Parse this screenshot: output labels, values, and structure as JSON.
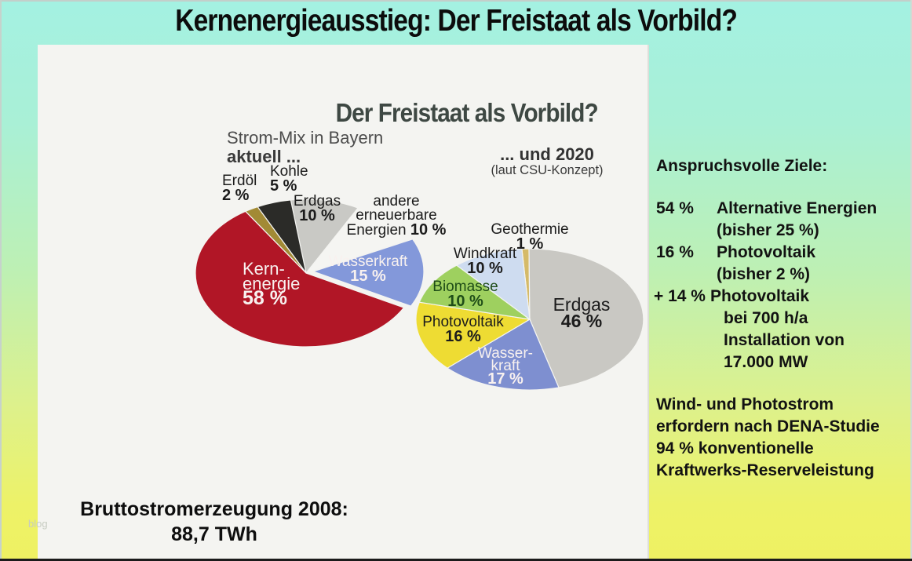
{
  "slide": {
    "title": "Kernenergieausstieg: Der Freistaat als Vorbild?",
    "watermark": "blog"
  },
  "chart": {
    "title": "Der Freistaat als Vorbild?",
    "left_caption": {
      "line1": "Strom-Mix in Bayern",
      "line2": "aktuell ..."
    },
    "right_caption": {
      "line1": "... und 2020",
      "line2": "(laut CSU-Konzept)"
    }
  },
  "chart_data": [
    {
      "type": "pie",
      "title": "Strom-Mix in Bayern aktuell ...",
      "unit": "percent",
      "slices": [
        {
          "id": "erdgas",
          "label": "Erdgas",
          "pct": "10 %",
          "value": 10,
          "color": "#c9c9c5"
        },
        {
          "id": "andere-erneuerbare",
          "label_lines": [
            "andere",
            "erneuerbare",
            "Energien"
          ],
          "pct": "10 %",
          "value": 10,
          "color": "#f5f5f2"
        },
        {
          "id": "wasserkraft",
          "label": "Wasserkraft",
          "pct": "15 %",
          "value": 15,
          "color": "#8398da"
        },
        {
          "id": "kernenergie",
          "label_lines": [
            "Kern-",
            "energie"
          ],
          "pct": "58 %",
          "value": 58,
          "color": "#b11626"
        },
        {
          "id": "erdoel",
          "label": "Erdöl",
          "pct": "2 %",
          "value": 2,
          "color": "#a28a35"
        },
        {
          "id": "kohle",
          "label": "Kohle",
          "pct": "5 %",
          "value": 5,
          "color": "#2b2b28"
        }
      ]
    },
    {
      "type": "pie",
      "title": "... und 2020 (laut CSU-Konzept)",
      "unit": "percent",
      "slices": [
        {
          "id": "geothermie",
          "label": "Geothermie",
          "pct": "1 %",
          "value": 1,
          "color": "#d5ba68"
        },
        {
          "id": "erdgas",
          "label": "Erdgas",
          "pct": "46 %",
          "value": 46,
          "color": "#c9c8c3"
        },
        {
          "id": "wasserkraft",
          "label_lines": [
            "Wasser-",
            "kraft"
          ],
          "pct": "17 %",
          "value": 17,
          "color": "#7e8fd0"
        },
        {
          "id": "photovoltaik",
          "label": "Photovoltaik",
          "pct": "16 %",
          "value": 16,
          "color": "#eedc33"
        },
        {
          "id": "biomasse",
          "label": "Biomasse",
          "pct": "10 %",
          "value": 10,
          "color": "#9ed05f"
        },
        {
          "id": "windkraft",
          "label": "Windkraft",
          "pct": "10 %",
          "value": 10,
          "color": "#cedcf0"
        }
      ]
    }
  ],
  "sidebar": {
    "heading": "Anspruchsvolle Ziele:",
    "goals": [
      {
        "lead": "54 %",
        "text": "Alternative Energien",
        "sub": "(bisher 25 %)"
      },
      {
        "lead": "16 %",
        "text": "Photovoltaik",
        "sub": "(bisher 2 %)"
      },
      {
        "lead": "+ 14 %",
        "text": "Photovoltaik",
        "details": [
          "bei 700 h/a",
          "Installation von",
          "17.000 MW"
        ]
      }
    ],
    "note_lines": [
      "Wind- und Photostrom",
      "erfordern nach DENA-Studie",
      "94 % konventionelle",
      "Kraftwerks-Reserveleistung"
    ]
  },
  "footer": {
    "line1": "Bruttostromerzeugung 2008:",
    "line2": "88,7 TWh"
  },
  "colors": {
    "bg_top": "#a4f1e2",
    "bg_bottom": "#eff162",
    "panel": "#f4f4f1",
    "kernenergie_red": "#b11626",
    "wasserkraft_blue": "#8398da",
    "photovoltaik_yellow": "#eedc33",
    "biomasse_green": "#9ed05f",
    "erdgas_gray": "#c9c8c3"
  }
}
